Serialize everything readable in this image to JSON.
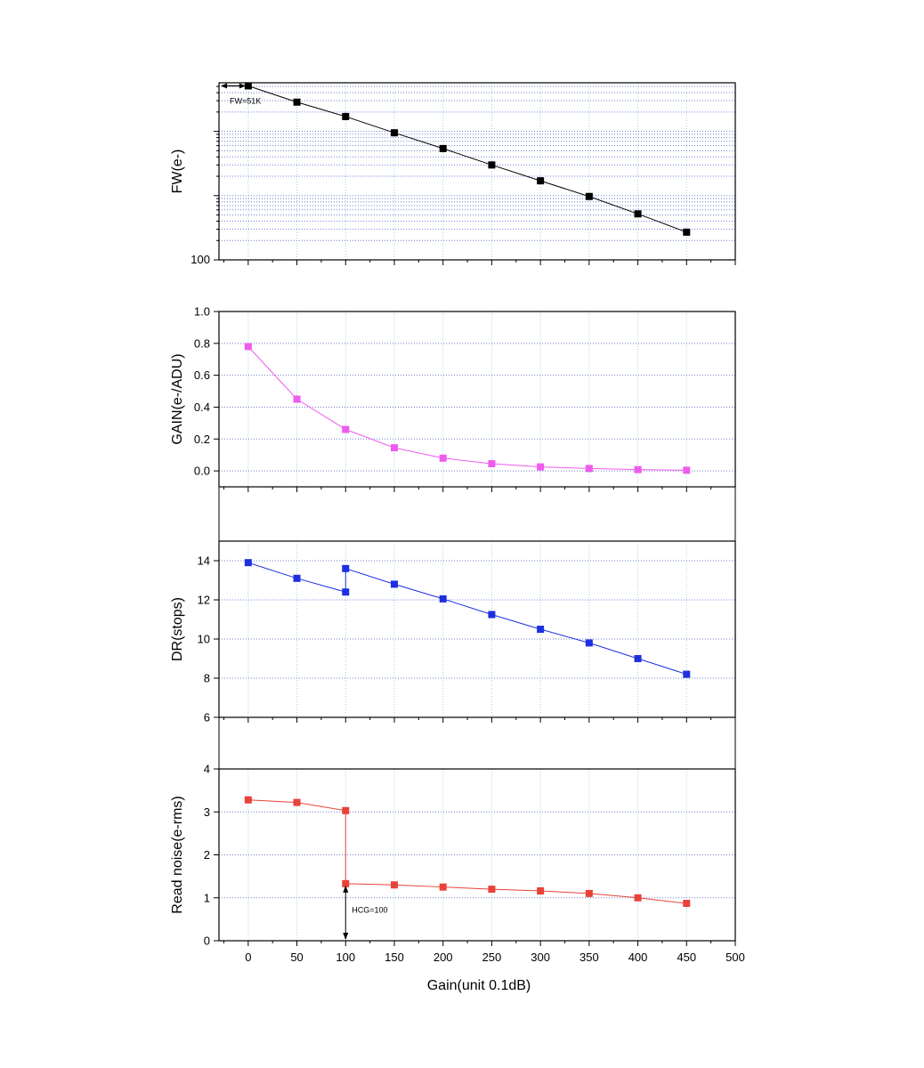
{
  "chart_data": {
    "type": "line",
    "xlabel": "Gain(unit 0.1dB)",
    "x_ticks": [
      0,
      50,
      100,
      150,
      200,
      250,
      300,
      350,
      400,
      450,
      500
    ],
    "xlim": [
      -30,
      500
    ],
    "panels": [
      {
        "id": "fw",
        "ylabel": "FW(e-)",
        "scale": "log",
        "ylim": [
          100,
          57000
        ],
        "y_tick_labels": [
          {
            "value": 100,
            "label": "100"
          }
        ],
        "series": {
          "name": "FW",
          "color": "#000000",
          "x": [
            0,
            50,
            100,
            150,
            200,
            250,
            300,
            350,
            400,
            450
          ],
          "y": [
            51000,
            28500,
            17000,
            9500,
            5400,
            3000,
            1700,
            970,
            520,
            270
          ]
        },
        "annotation": "FW=51K"
      },
      {
        "id": "gain",
        "ylabel": "GAIN(e-/ADU)",
        "scale": "linear",
        "ylim": [
          -0.1,
          1.0
        ],
        "y_ticks": [
          0.0,
          0.2,
          0.4,
          0.6,
          0.8,
          1.0
        ],
        "y_tick_labels": [
          "0.0",
          "0.2",
          "0.4",
          "0.6",
          "0.8",
          "1.0"
        ],
        "series": {
          "name": "GAIN",
          "color": "#ee5bee",
          "x": [
            0,
            50,
            100,
            150,
            200,
            250,
            300,
            350,
            400,
            450
          ],
          "y": [
            0.78,
            0.45,
            0.26,
            0.145,
            0.08,
            0.045,
            0.025,
            0.015,
            0.008,
            0.004
          ]
        }
      },
      {
        "id": "dr",
        "ylabel": "DR(stops)",
        "scale": "linear",
        "ylim": [
          6,
          15
        ],
        "y_ticks": [
          6,
          8,
          10,
          12,
          14
        ],
        "y_tick_labels": [
          "6",
          "8",
          "10",
          "12",
          "14"
        ],
        "series": {
          "name": "DR",
          "color": "#1f2fe0",
          "x": [
            0,
            50,
            100,
            100,
            150,
            200,
            250,
            300,
            350,
            400,
            450
          ],
          "y": [
            13.9,
            13.1,
            12.4,
            13.6,
            12.8,
            12.05,
            11.25,
            10.5,
            9.8,
            9.0,
            8.2
          ]
        }
      },
      {
        "id": "rn",
        "ylabel": "Read noise(e-rms)",
        "scale": "linear",
        "ylim": [
          0,
          4
        ],
        "y_ticks": [
          0,
          1,
          2,
          3,
          4
        ],
        "y_tick_labels": [
          "0",
          "1",
          "2",
          "3",
          "4"
        ],
        "series": {
          "name": "Read noise",
          "color": "#e8423a",
          "x": [
            0,
            50,
            100,
            100,
            150,
            200,
            250,
            300,
            350,
            400,
            450
          ],
          "y": [
            3.28,
            3.22,
            3.03,
            1.33,
            1.3,
            1.25,
            1.2,
            1.16,
            1.1,
            1.0,
            0.87
          ]
        },
        "annotation": "HCG=100"
      }
    ]
  }
}
